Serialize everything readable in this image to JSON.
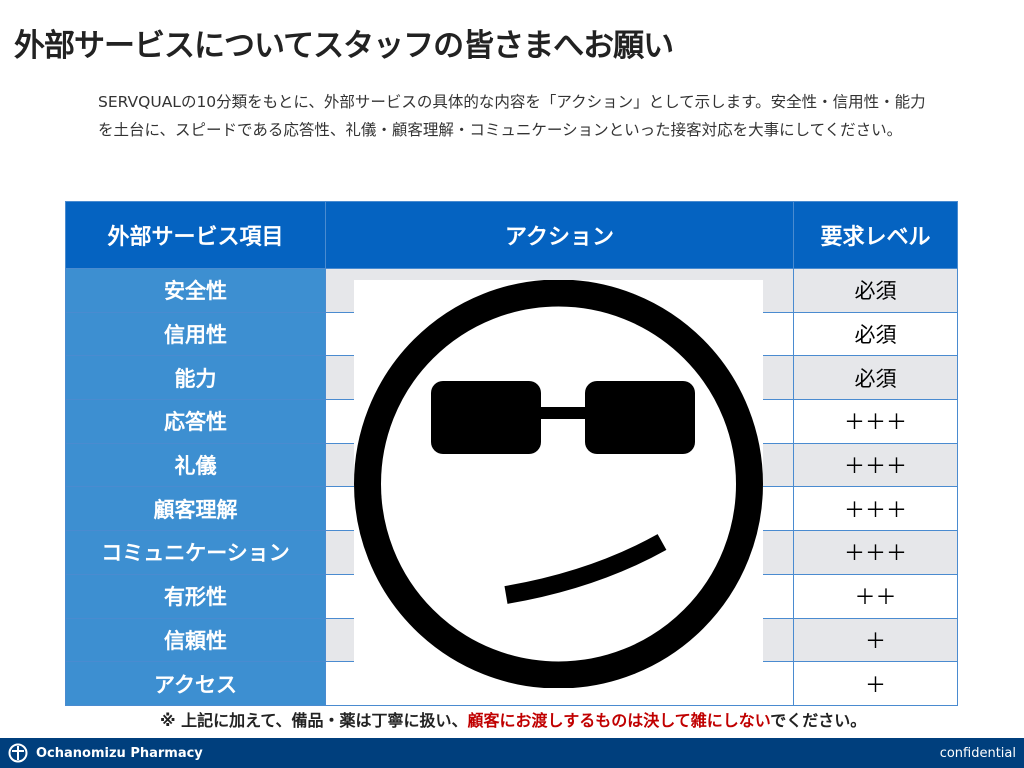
{
  "title": "外部サービスについてスタッフの皆さまへお願い",
  "intro": "SERVQUALの10分類をもとに、外部サービスの具体的な内容を「アクション」として示します。安全性・信用性・能力を土台に、スピードである応答性、礼儀・顧客理解・コミュニケーションといった接客対応を大事にしてください。",
  "table": {
    "headers": [
      "外部サービス項目",
      "アクション",
      "要求レベル"
    ],
    "rows": [
      {
        "item": "安全性",
        "action": "",
        "level": "必須"
      },
      {
        "item": "信用性",
        "action": "",
        "level": "必須"
      },
      {
        "item": "能力",
        "action": "",
        "level": "必須"
      },
      {
        "item": "応答性",
        "action": "",
        "level": "＋＋＋"
      },
      {
        "item": "礼儀",
        "action": "",
        "level": "＋＋＋"
      },
      {
        "item": "顧客理解",
        "action": "",
        "level": "＋＋＋"
      },
      {
        "item": "コミュニケーション",
        "action": "",
        "level": "＋＋＋"
      },
      {
        "item": "有形性",
        "action": "",
        "level": "＋＋"
      },
      {
        "item": "信頼性",
        "action": "",
        "level": "＋"
      },
      {
        "item": "アクセス",
        "action": "",
        "level": "＋"
      }
    ]
  },
  "overlay_icon": "cool-smiley-sunglasses-icon",
  "note": {
    "prefix": "※ 上記に加えて、備品・薬は丁寧に扱い、",
    "highlight": "顧客にお渡しするものは決して雑にしない",
    "suffix": "でください。",
    "highlight_color": "#c00000"
  },
  "footer": {
    "brand": "Ochanomizu Pharmacy",
    "confidential": "confidential",
    "logo_icon": "pharmacy-logo-icon"
  },
  "colors": {
    "header": "#0563c1",
    "item_column": "#3d8fd1",
    "footer": "#003f7d"
  }
}
